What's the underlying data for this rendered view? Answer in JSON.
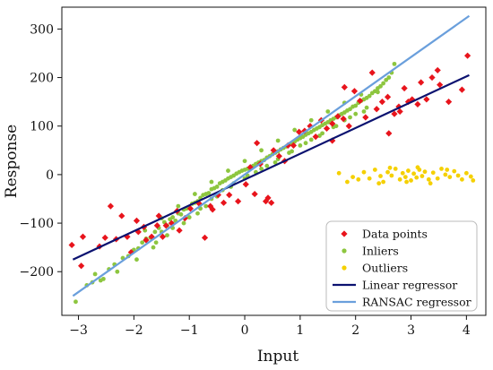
{
  "chart_data": {
    "type": "scatter",
    "title": "",
    "xlabel": "Input",
    "ylabel": "Response",
    "xlim": [
      -3.3,
      4.35
    ],
    "ylim": [
      -290,
      345
    ],
    "xticks": [
      -3,
      -2,
      -1,
      0,
      1,
      2,
      3,
      4
    ],
    "xtick_labels": [
      "−3",
      "−2",
      "−1",
      "0",
      "1",
      "2",
      "3",
      "4"
    ],
    "yticks": [
      -200,
      -100,
      0,
      100,
      200,
      300
    ],
    "ytick_labels": [
      "−200",
      "−100",
      "0",
      "100",
      "200",
      "300"
    ],
    "grid": false,
    "legend_position": "bottom-right",
    "colors": {
      "data_points": "#e8141c",
      "inliers": "#8dc63f",
      "outliers": "#f5d000",
      "linear": "#0b1270",
      "ransac": "#6a9fdc"
    },
    "series": [
      {
        "name": "Data points",
        "kind": "marker-diamond",
        "points": [
          [
            -3.12,
            -145
          ],
          [
            -2.95,
            -188
          ],
          [
            -2.92,
            -128
          ],
          [
            -2.62,
            -148
          ],
          [
            -2.52,
            -130
          ],
          [
            -2.42,
            -65
          ],
          [
            -2.32,
            -133
          ],
          [
            -2.22,
            -85
          ],
          [
            -2.12,
            -128
          ],
          [
            -2.05,
            -160
          ],
          [
            -1.95,
            -95
          ],
          [
            -1.92,
            -118
          ],
          [
            -1.82,
            -108
          ],
          [
            -1.78,
            -135
          ],
          [
            -1.68,
            -128
          ],
          [
            -1.58,
            -105
          ],
          [
            -1.55,
            -85
          ],
          [
            -1.48,
            -128
          ],
          [
            -1.42,
            -105
          ],
          [
            -1.32,
            -100
          ],
          [
            -1.22,
            -75
          ],
          [
            -1.18,
            -115
          ],
          [
            -1.08,
            -90
          ],
          [
            -0.98,
            -70
          ],
          [
            -0.82,
            -60
          ],
          [
            -0.72,
            -130
          ],
          [
            -0.62,
            -65
          ],
          [
            -0.58,
            -72
          ],
          [
            -0.48,
            -42
          ],
          [
            -0.38,
            -58
          ],
          [
            -0.28,
            -42
          ],
          [
            -0.12,
            -55
          ],
          [
            0.02,
            -20
          ],
          [
            0.1,
            15
          ],
          [
            0.18,
            -40
          ],
          [
            0.22,
            65
          ],
          [
            0.28,
            22
          ],
          [
            0.38,
            -55
          ],
          [
            0.42,
            -48
          ],
          [
            0.48,
            -58
          ],
          [
            0.52,
            50
          ],
          [
            0.62,
            38
          ],
          [
            0.72,
            28
          ],
          [
            0.78,
            60
          ],
          [
            0.88,
            60
          ],
          [
            0.98,
            88
          ],
          [
            1.08,
            90
          ],
          [
            1.18,
            100
          ],
          [
            1.28,
            78
          ],
          [
            1.38,
            112
          ],
          [
            1.48,
            95
          ],
          [
            1.58,
            70
          ],
          [
            1.68,
            120
          ],
          [
            1.78,
            115
          ],
          [
            1.88,
            100
          ],
          [
            1.98,
            172
          ],
          [
            2.08,
            152
          ],
          [
            2.18,
            118
          ],
          [
            2.38,
            135
          ],
          [
            2.48,
            150
          ],
          [
            2.58,
            160
          ],
          [
            2.7,
            125
          ],
          [
            2.78,
            140
          ],
          [
            2.88,
            178
          ],
          [
            2.95,
            150
          ],
          [
            3.02,
            155
          ],
          [
            3.12,
            145
          ],
          [
            3.18,
            190
          ],
          [
            3.28,
            155
          ],
          [
            3.38,
            200
          ],
          [
            3.48,
            215
          ],
          [
            3.52,
            185
          ],
          [
            3.68,
            150
          ],
          [
            3.92,
            175
          ],
          [
            4.02,
            245
          ],
          [
            2.6,
            85
          ],
          [
            2.8,
            130
          ],
          [
            1.58,
            105
          ],
          [
            1.8,
            180
          ],
          [
            2.3,
            210
          ]
        ]
      },
      {
        "name": "Inliers",
        "kind": "marker-circle",
        "points": [
          [
            -3.05,
            -262
          ],
          [
            -2.85,
            -228
          ],
          [
            -2.75,
            -222
          ],
          [
            -2.6,
            -218
          ],
          [
            -2.45,
            -195
          ],
          [
            -2.35,
            -185
          ],
          [
            -2.2,
            -172
          ],
          [
            -2.1,
            -168
          ],
          [
            -2.0,
            -155
          ],
          [
            -1.92,
            -152
          ],
          [
            -1.85,
            -140
          ],
          [
            -1.78,
            -132
          ],
          [
            -1.7,
            -130
          ],
          [
            -1.62,
            -118
          ],
          [
            -1.55,
            -110
          ],
          [
            -1.5,
            -118
          ],
          [
            -1.45,
            -98
          ],
          [
            -1.4,
            -105
          ],
          [
            -1.35,
            -92
          ],
          [
            -1.3,
            -88
          ],
          [
            -1.25,
            -95
          ],
          [
            -1.2,
            -80
          ],
          [
            -1.15,
            -82
          ],
          [
            -1.1,
            -72
          ],
          [
            -1.05,
            -70
          ],
          [
            -1.0,
            -68
          ],
          [
            -0.95,
            -60
          ],
          [
            -0.9,
            -58
          ],
          [
            -0.85,
            -55
          ],
          [
            -0.8,
            -48
          ],
          [
            -0.75,
            -42
          ],
          [
            -0.7,
            -40
          ],
          [
            -0.65,
            -38
          ],
          [
            -0.6,
            -30
          ],
          [
            -0.55,
            -28
          ],
          [
            -0.5,
            -25
          ],
          [
            -0.45,
            -18
          ],
          [
            -0.4,
            -15
          ],
          [
            -0.35,
            -12
          ],
          [
            -0.3,
            -8
          ],
          [
            -0.25,
            -5
          ],
          [
            -0.2,
            -2
          ],
          [
            -0.15,
            2
          ],
          [
            -0.1,
            5
          ],
          [
            -0.05,
            8
          ],
          [
            0.0,
            10
          ],
          [
            0.05,
            12
          ],
          [
            0.1,
            15
          ],
          [
            0.15,
            18
          ],
          [
            0.2,
            22
          ],
          [
            0.25,
            25
          ],
          [
            0.3,
            28
          ],
          [
            0.35,
            30
          ],
          [
            0.4,
            35
          ],
          [
            0.45,
            38
          ],
          [
            0.5,
            42
          ],
          [
            0.55,
            45
          ],
          [
            0.6,
            48
          ],
          [
            0.65,
            52
          ],
          [
            0.7,
            55
          ],
          [
            0.75,
            58
          ],
          [
            0.8,
            62
          ],
          [
            0.85,
            65
          ],
          [
            0.9,
            68
          ],
          [
            0.95,
            72
          ],
          [
            1.0,
            75
          ],
          [
            1.05,
            78
          ],
          [
            1.1,
            82
          ],
          [
            1.15,
            85
          ],
          [
            1.2,
            88
          ],
          [
            1.25,
            92
          ],
          [
            1.3,
            95
          ],
          [
            1.35,
            98
          ],
          [
            1.4,
            102
          ],
          [
            1.45,
            105
          ],
          [
            1.5,
            108
          ],
          [
            1.55,
            112
          ],
          [
            1.6,
            115
          ],
          [
            1.65,
            118
          ],
          [
            1.7,
            122
          ],
          [
            1.75,
            125
          ],
          [
            1.8,
            128
          ],
          [
            1.85,
            132
          ],
          [
            1.9,
            135
          ],
          [
            1.95,
            140
          ],
          [
            2.0,
            142
          ],
          [
            2.05,
            148
          ],
          [
            2.1,
            152
          ],
          [
            2.15,
            155
          ],
          [
            2.2,
            158
          ],
          [
            2.25,
            162
          ],
          [
            2.3,
            168
          ],
          [
            2.35,
            172
          ],
          [
            2.4,
            178
          ],
          [
            2.45,
            182
          ],
          [
            2.5,
            188
          ],
          [
            2.55,
            195
          ],
          [
            2.6,
            200
          ],
          [
            2.65,
            210
          ],
          [
            2.7,
            228
          ],
          [
            -1.6,
            -140
          ],
          [
            -1.3,
            -110
          ],
          [
            -1.0,
            -88
          ],
          [
            -0.8,
            -70
          ],
          [
            -0.6,
            -50
          ],
          [
            -0.4,
            -32
          ],
          [
            -0.2,
            -18
          ],
          [
            0.0,
            -8
          ],
          [
            0.2,
            5
          ],
          [
            0.4,
            18
          ],
          [
            0.6,
            32
          ],
          [
            0.8,
            45
          ],
          [
            1.0,
            60
          ],
          [
            1.2,
            72
          ],
          [
            1.4,
            85
          ],
          [
            1.6,
            98
          ],
          [
            1.8,
            112
          ],
          [
            2.0,
            125
          ],
          [
            2.2,
            138
          ],
          [
            -1.8,
            -115
          ],
          [
            -1.5,
            -90
          ],
          [
            -1.2,
            -65
          ],
          [
            -0.9,
            -40
          ],
          [
            -0.6,
            -15
          ],
          [
            -0.3,
            8
          ],
          [
            0.0,
            28
          ],
          [
            0.3,
            50
          ],
          [
            0.6,
            70
          ],
          [
            0.9,
            92
          ],
          [
            1.2,
            112
          ],
          [
            1.5,
            130
          ],
          [
            1.8,
            148
          ],
          [
            2.1,
            165
          ],
          [
            2.4,
            170
          ],
          [
            -2.3,
            -200
          ],
          [
            -2.55,
            -215
          ],
          [
            -2.7,
            -205
          ],
          [
            -1.95,
            -175
          ],
          [
            -1.65,
            -150
          ],
          [
            -1.4,
            -125
          ],
          [
            -1.1,
            -100
          ],
          [
            -0.85,
            -80
          ],
          [
            -0.7,
            -65
          ],
          [
            -0.5,
            -45
          ],
          [
            -0.25,
            -25
          ],
          [
            0.05,
            -2
          ],
          [
            0.3,
            12
          ],
          [
            0.55,
            25
          ],
          [
            0.85,
            48
          ],
          [
            1.1,
            65
          ],
          [
            1.35,
            80
          ],
          [
            1.65,
            100
          ],
          [
            1.9,
            118
          ],
          [
            2.15,
            130
          ]
        ]
      },
      {
        "name": "Outliers",
        "kind": "marker-circle",
        "points": [
          [
            1.7,
            3
          ],
          [
            1.85,
            -15
          ],
          [
            1.95,
            -5
          ],
          [
            2.05,
            -10
          ],
          [
            2.15,
            5
          ],
          [
            2.25,
            -8
          ],
          [
            2.35,
            10
          ],
          [
            2.45,
            -3
          ],
          [
            2.5,
            -15
          ],
          [
            2.58,
            5
          ],
          [
            2.65,
            -2
          ],
          [
            2.72,
            12
          ],
          [
            2.8,
            -10
          ],
          [
            2.85,
            3
          ],
          [
            2.9,
            -5
          ],
          [
            2.95,
            8
          ],
          [
            3.0,
            -12
          ],
          [
            3.05,
            2
          ],
          [
            3.1,
            -6
          ],
          [
            3.15,
            10
          ],
          [
            3.2,
            -3
          ],
          [
            3.25,
            6
          ],
          [
            3.32,
            -10
          ],
          [
            3.4,
            4
          ],
          [
            3.48,
            -8
          ],
          [
            3.55,
            12
          ],
          [
            3.62,
            0
          ],
          [
            3.7,
            -5
          ],
          [
            3.78,
            7
          ],
          [
            3.85,
            -2
          ],
          [
            3.92,
            -10
          ],
          [
            4.0,
            3
          ],
          [
            4.08,
            -4
          ],
          [
            4.12,
            -12
          ],
          [
            2.42,
            -18
          ],
          [
            2.62,
            14
          ],
          [
            2.92,
            -15
          ],
          [
            3.12,
            15
          ],
          [
            3.35,
            -18
          ],
          [
            3.65,
            10
          ]
        ]
      },
      {
        "name": "Linear regressor",
        "kind": "line",
        "x": [
          -3.1,
          4.05
        ],
        "y": [
          -175,
          205
        ]
      },
      {
        "name": "RANSAC regressor",
        "kind": "line",
        "x": [
          -3.1,
          4.05
        ],
        "y": [
          -250,
          327
        ]
      }
    ]
  }
}
